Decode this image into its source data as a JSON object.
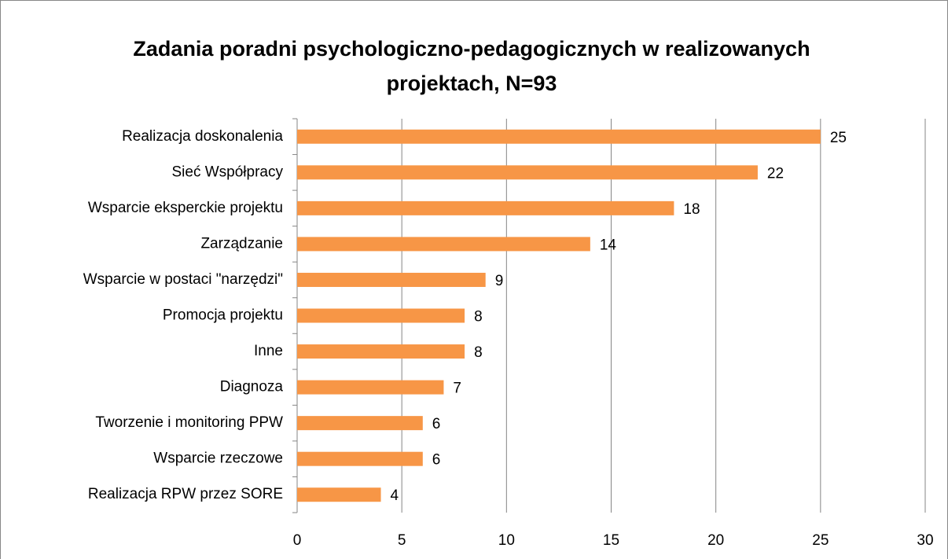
{
  "chart_data": {
    "type": "hbar",
    "title": "Zadania poradni psychologiczno-pedagogicznych w realizowanych projektach, N=93",
    "categories": [
      "Realizacja doskonalenia",
      "Sieć Współpracy",
      "Wsparcie eksperckie projektu",
      "Zarządzanie",
      "Wsparcie w postaci \"narzędzi\"",
      "Promocja projektu",
      "Inne",
      "Diagnoza",
      "Tworzenie i monitoring PPW",
      "Wsparcie rzeczowe",
      "Realizacja RPW przez SORE"
    ],
    "values": [
      25,
      22,
      18,
      14,
      9,
      8,
      8,
      7,
      6,
      6,
      4
    ],
    "color": "#f79646",
    "xlim": [
      0,
      30
    ],
    "xticks": [
      0,
      5,
      10,
      15,
      20,
      25,
      30
    ],
    "grid": true
  }
}
